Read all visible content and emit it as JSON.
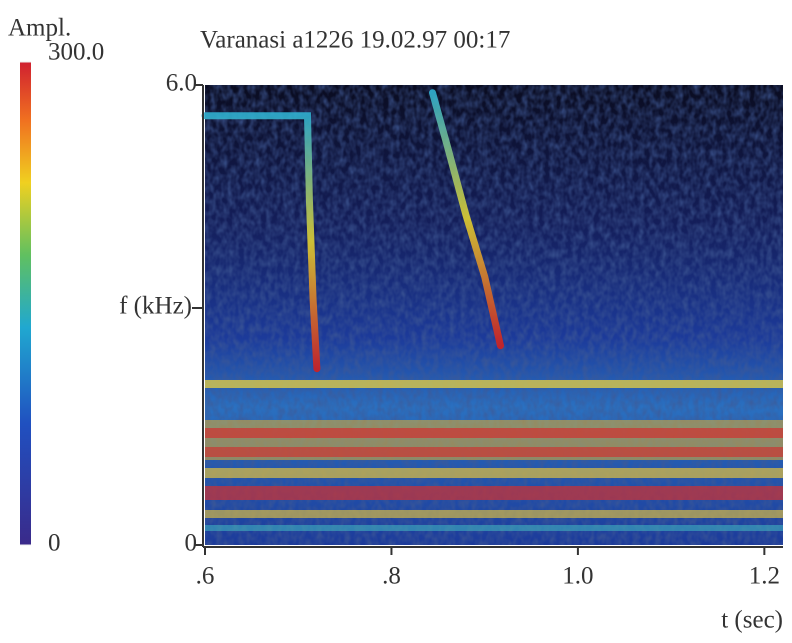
{
  "chart_data": {
    "type": "spectrogram",
    "title": "Varanasi a1226 19.02.97 00:17",
    "xlabel": "t (sec)",
    "ylabel": "f (kHz)",
    "xlim": [
      0.6,
      1.22
    ],
    "xticks": [
      {
        "value": 0.6,
        "label": ".6"
      },
      {
        "value": 0.8,
        "label": ".8"
      },
      {
        "value": 1.0,
        "label": "1.0"
      },
      1.2
    ],
    "ylim": [
      0,
      6
    ],
    "yticks": [
      0,
      {
        "value": 6,
        "label": "6.0"
      }
    ],
    "colorbar": {
      "label": "Ampl.",
      "lim": [
        0,
        300
      ],
      "ticks": [
        0,
        {
          "value": 300,
          "label": "300.0"
        }
      ]
    },
    "traces": [
      {
        "x": [
          0.6,
          0.71,
          0.712,
          0.716,
          0.72
        ],
        "y": [
          5.6,
          5.6,
          4.5,
          3.2,
          2.3
        ]
      },
      {
        "x": [
          0.844,
          0.86,
          0.88,
          0.9,
          0.917
        ],
        "y": [
          5.9,
          5.2,
          4.3,
          3.5,
          2.6
        ]
      }
    ]
  }
}
